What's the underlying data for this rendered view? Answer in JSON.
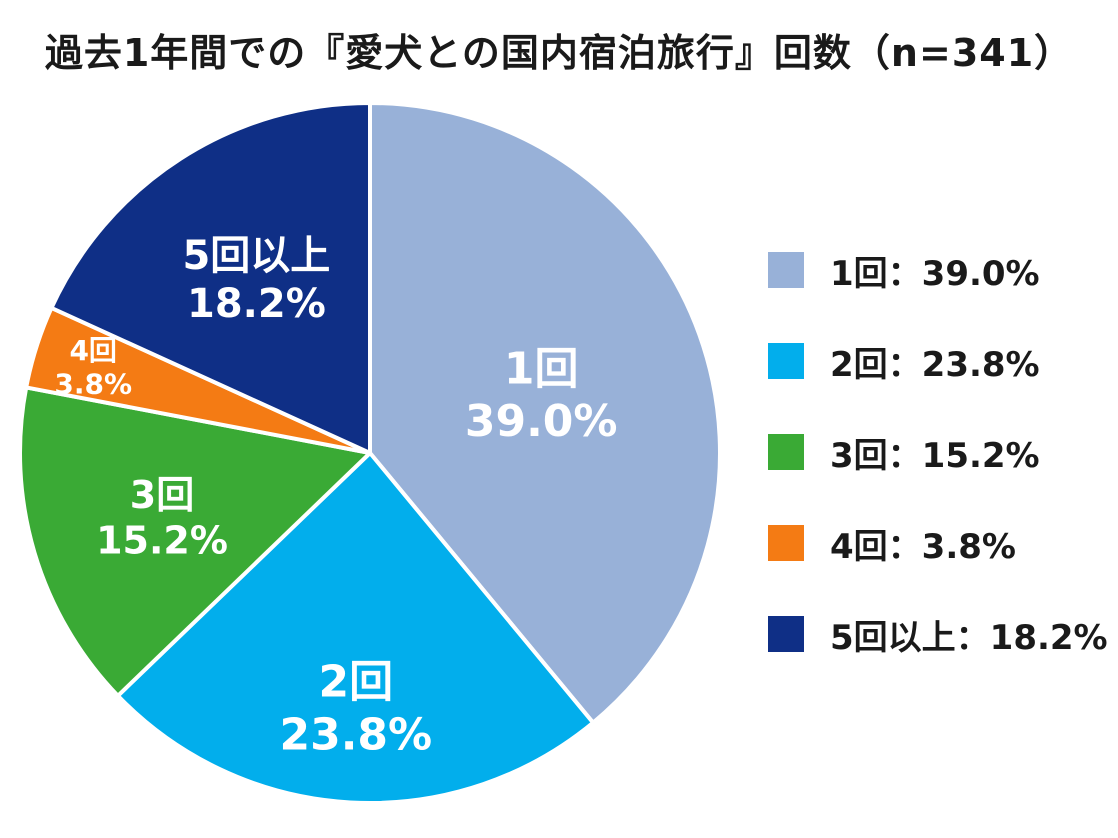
{
  "chart_data": {
    "type": "pie",
    "title": "過去1年間での『愛犬との国内宿泊旅行』回数（n=341）",
    "categories": [
      "1回",
      "2回",
      "3回",
      "4回",
      "5回以上"
    ],
    "values": [
      39.0,
      23.8,
      15.2,
      3.8,
      18.2
    ],
    "value_labels": [
      "39.0%",
      "23.8%",
      "15.2%",
      "3.8%",
      "18.2%"
    ],
    "colors": [
      "#98b1d8",
      "#02aeec",
      "#3aaa35",
      "#f47b14",
      "#0f2f86"
    ],
    "legend_entries": [
      "1回：39.0%",
      "2回：23.8%",
      "3回：15.2%",
      "4回：3.8%",
      "5回以上：18.2%"
    ],
    "legend_position": "right",
    "start_angle": "12 o'clock",
    "direction": "clockwise"
  }
}
